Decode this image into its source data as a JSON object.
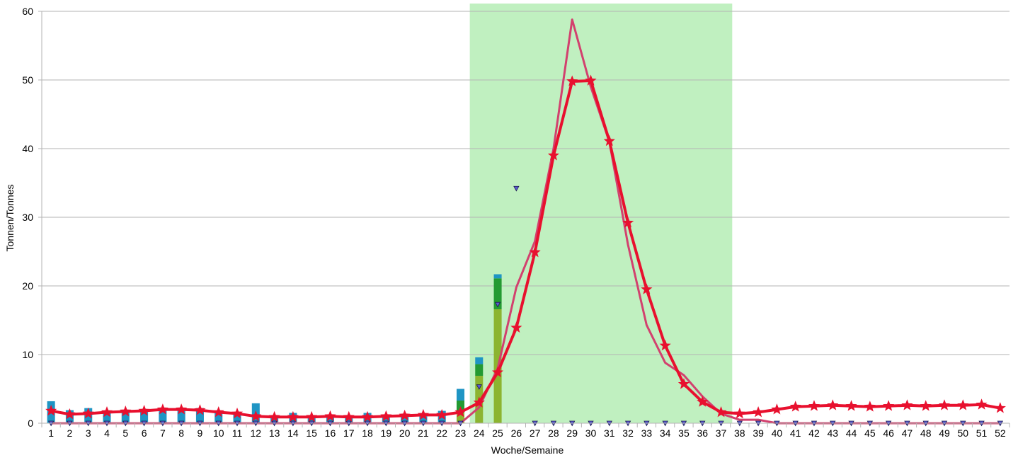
{
  "chart_data": {
    "type": "line",
    "title": "",
    "xlabel": "Woche/Semaine",
    "ylabel": "Tonnen/Tonnes",
    "ylim": [
      0,
      60
    ],
    "yticks": [
      0,
      10,
      20,
      30,
      40,
      50,
      60
    ],
    "grid": true,
    "legend": "none",
    "highlight": {
      "from_week": 24,
      "to_week": 37,
      "color": "#c0f0c0"
    },
    "x": [
      1,
      2,
      3,
      4,
      5,
      6,
      7,
      8,
      9,
      10,
      11,
      12,
      13,
      14,
      15,
      16,
      17,
      18,
      19,
      20,
      21,
      22,
      23,
      24,
      25,
      26,
      27,
      28,
      29,
      30,
      31,
      32,
      33,
      34,
      35,
      36,
      37,
      38,
      39,
      40,
      41,
      42,
      43,
      44,
      45,
      46,
      47,
      48,
      49,
      50,
      51,
      52
    ],
    "bars": {
      "segments": [
        {
          "color": "#8cb430",
          "values": [
            0,
            0,
            0,
            0,
            0,
            0,
            0,
            0,
            0,
            0,
            0,
            0,
            0,
            0,
            0,
            0,
            0,
            0,
            0,
            0,
            0,
            0,
            1.5,
            6.9,
            16.6,
            0,
            0,
            0,
            0,
            0,
            0,
            0,
            0,
            0,
            0,
            0,
            0,
            0,
            0,
            0,
            0,
            0,
            0,
            0,
            0,
            0,
            0,
            0,
            0,
            0,
            0,
            0
          ]
        },
        {
          "color": "#239a32",
          "values": [
            0,
            0,
            0,
            0,
            0,
            0,
            0,
            0,
            0,
            0,
            0,
            0,
            0,
            0,
            0,
            0,
            0,
            0,
            0,
            0,
            0,
            0,
            1.8,
            1.7,
            4.5,
            0,
            0,
            0,
            0,
            0,
            0,
            0,
            0,
            0,
            0,
            0,
            0,
            0,
            0,
            0,
            0,
            0,
            0,
            0,
            0,
            0,
            0,
            0,
            0,
            0,
            0,
            0
          ]
        },
        {
          "color": "#1f95c4",
          "values": [
            3.2,
            1.9,
            2.2,
            1.6,
            1.6,
            2.0,
            2.0,
            2.0,
            2.2,
            1.7,
            1.6,
            2.9,
            1.0,
            1.5,
            1.0,
            1.0,
            1.0,
            1.5,
            1.1,
            1.2,
            1.0,
            1.8,
            1.7,
            1.0,
            0.6,
            0,
            0,
            0,
            0,
            0,
            0,
            0,
            0,
            0,
            0,
            0,
            0,
            0,
            0,
            0,
            0,
            0,
            0,
            0,
            0,
            0,
            0,
            0,
            0,
            0,
            0,
            0
          ]
        }
      ]
    },
    "series": [
      {
        "color": "#d2416e",
        "width": 3,
        "marker": "none",
        "values": [
          0,
          0,
          0,
          0,
          0,
          0,
          0,
          0,
          0,
          0,
          0,
          0,
          0,
          0,
          0,
          0,
          0,
          0,
          0,
          0,
          0,
          0,
          0,
          2.3,
          8.0,
          19.8,
          26.5,
          40.0,
          58.8,
          49.0,
          41.0,
          26.0,
          14.3,
          8.8,
          7.0,
          3.9,
          1.4,
          0.5,
          0.5,
          0,
          0,
          0,
          0,
          0,
          0,
          0,
          0,
          0,
          0,
          0,
          0,
          0
        ]
      },
      {
        "color": "#2e2e8c",
        "width": 0,
        "marker": "triangle-down",
        "values": [
          0,
          0,
          0,
          0,
          0,
          0,
          0,
          0,
          0,
          0,
          0,
          0,
          0,
          0,
          0,
          0,
          0,
          0,
          0,
          0,
          0,
          0,
          0,
          5.3,
          17.3,
          34.2,
          0,
          0,
          0,
          0,
          0,
          0,
          0,
          0,
          0,
          0,
          0,
          0,
          0,
          0,
          0,
          0,
          0,
          0,
          0,
          0,
          0,
          0,
          0,
          0,
          0,
          0
        ]
      },
      {
        "color": "#e8102e",
        "width": 4,
        "marker": "star",
        "values": [
          1.8,
          1.3,
          1.4,
          1.6,
          1.7,
          1.8,
          2.0,
          2.0,
          1.9,
          1.6,
          1.4,
          1.0,
          0.9,
          0.9,
          0.9,
          1.0,
          0.9,
          0.9,
          1.0,
          1.1,
          1.2,
          1.2,
          1.6,
          3.0,
          7.4,
          13.9,
          24.9,
          39.0,
          49.8,
          49.9,
          41.1,
          29.2,
          19.5,
          11.3,
          5.7,
          3.1,
          1.6,
          1.4,
          1.6,
          2.0,
          2.4,
          2.5,
          2.6,
          2.5,
          2.4,
          2.5,
          2.6,
          2.5,
          2.6,
          2.6,
          2.7,
          2.2
        ]
      }
    ]
  }
}
